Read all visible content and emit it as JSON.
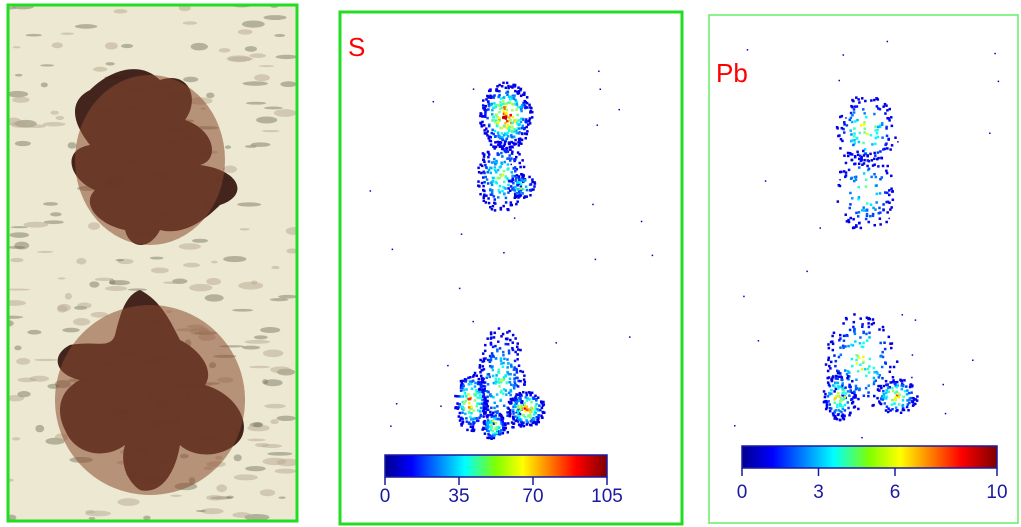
{
  "panels": [
    {
      "label": "S",
      "colorbar": {
        "lim": [
          0,
          105
        ],
        "ticks": [
          0,
          35,
          70,
          105
        ]
      }
    },
    {
      "label": "Pb",
      "colorbar": {
        "lim": [
          0,
          10
        ],
        "ticks": [
          0,
          3,
          6,
          10
        ]
      }
    }
  ]
}
